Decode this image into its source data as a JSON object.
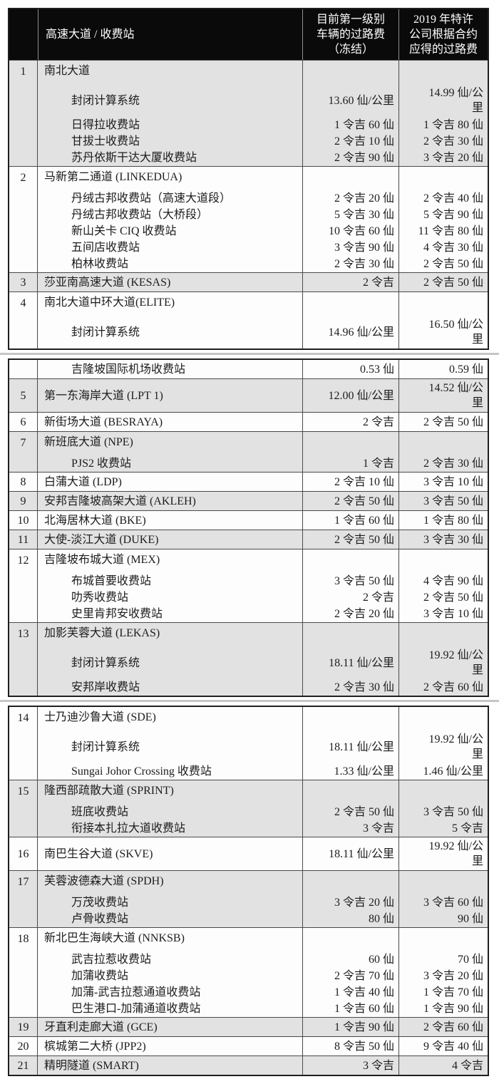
{
  "colors": {
    "header_bg": "#0a0a0a",
    "header_text": "#ffffff",
    "row_shade": "#e2e2e2",
    "row_white": "#fdfdfd",
    "border_dark": "#1f1f1f",
    "border_light": "#4a4a4a",
    "text": "#1c1c1c",
    "break_shadow": "#b3b3b3"
  },
  "table": {
    "header": {
      "col_road": "高速大道 / 收费站",
      "col_current": "目前第一级别\n车辆的过路费\n（冻结）",
      "col_2019": "2019 年特许\n公司根据合约\n应得的过路费"
    },
    "segments": [
      {
        "rows": [
          {
            "num": "1",
            "lines": [
              {
                "type": "title",
                "name": "南北大道",
                "current": "",
                "y2019": ""
              },
              {
                "type": "station",
                "name": "封闭计算系统",
                "current": "13.60 仙/公里",
                "y2019": "14.99 仙/公\n里"
              },
              {
                "type": "station",
                "name": "日得拉收费站",
                "current": "1 令吉 60 仙",
                "y2019": "1 令吉 80 仙"
              },
              {
                "type": "station",
                "name": "甘拔士收费站",
                "current": "2 令吉 10 仙",
                "y2019": "2 令吉 30 仙"
              },
              {
                "type": "station",
                "name": "苏丹依斯干达大厦收费站",
                "current": "2 令吉 90 仙",
                "y2019": "3 令吉 20 仙"
              }
            ]
          },
          {
            "num": "2",
            "lines": [
              {
                "type": "title",
                "name": "马新第二通道 (LINKEDUA)",
                "current": "",
                "y2019": ""
              },
              {
                "type": "station",
                "name": "丹绒古邦收费站（高速大道段）",
                "current": "2 令吉 20 仙",
                "y2019": "2 令吉 40 仙"
              },
              {
                "type": "station",
                "name": "丹绒古邦收费站（大桥段）",
                "current": "5 令吉 30 仙",
                "y2019": "5 令吉 90 仙"
              },
              {
                "type": "station",
                "name": "新山关卡 CIQ 收费站",
                "current": "10 令吉 60 仙",
                "y2019": "11 令吉 80 仙"
              },
              {
                "type": "station",
                "name": "五间店收费站",
                "current": "3 令吉 90 仙",
                "y2019": "4 令吉 30 仙"
              },
              {
                "type": "station",
                "name": "柏林收费站",
                "current": "2 令吉 30 仙",
                "y2019": "2 令吉 50 仙"
              }
            ]
          },
          {
            "num": "3",
            "lines": [
              {
                "type": "title",
                "name": "莎亚南高速大道 (KESAS)",
                "current": "2 令吉",
                "y2019": "2 令吉 50 仙"
              }
            ]
          },
          {
            "num": "4",
            "lines": [
              {
                "type": "title",
                "name": "南北大道中环大道(ELITE)",
                "current": "",
                "y2019": ""
              },
              {
                "type": "station",
                "name": "封闭计算系统",
                "current": "14.96 仙/公里",
                "y2019": "16.50 仙/公\n里"
              }
            ]
          }
        ]
      },
      {
        "rows": [
          {
            "num": "",
            "lines": [
              {
                "type": "station",
                "name": "吉隆坡国际机场收费站",
                "current": "0.53 仙",
                "y2019": "0.59 仙"
              }
            ]
          },
          {
            "num": "5",
            "lines": [
              {
                "type": "title",
                "name": "第一东海岸大道 (LPT 1)",
                "current": "12.00 仙/公里",
                "y2019": "14.52 仙/公\n里"
              }
            ]
          },
          {
            "num": "6",
            "lines": [
              {
                "type": "title",
                "name": "新街场大道 (BESRAYA)",
                "current": "2 令吉",
                "y2019": "2 令吉 50 仙"
              }
            ]
          },
          {
            "num": "7",
            "lines": [
              {
                "type": "title",
                "name": "新班底大道 (NPE)",
                "current": "",
                "y2019": ""
              },
              {
                "type": "station",
                "name": "PJS2 收费站",
                "current": "1 令吉",
                "y2019": "2 令吉 30 仙"
              }
            ]
          },
          {
            "num": "8",
            "lines": [
              {
                "type": "title",
                "name": "白蒲大道 (LDP)",
                "current": "2 令吉 10 仙",
                "y2019": "3 令吉 10 仙"
              }
            ]
          },
          {
            "num": "9",
            "lines": [
              {
                "type": "title",
                "name": "安邦吉隆坡高架大道 (AKLEH)",
                "current": "2 令吉 50 仙",
                "y2019": "3 令吉 50 仙"
              }
            ]
          },
          {
            "num": "10",
            "lines": [
              {
                "type": "title",
                "name": "北海居林大道 (BKE)",
                "current": "1 令吉 60 仙",
                "y2019": "1 令吉 80 仙"
              }
            ]
          },
          {
            "num": "11",
            "lines": [
              {
                "type": "title",
                "name": "大使-淡江大道 (DUKE)",
                "current": "2 令吉 50 仙",
                "y2019": "3 令吉 30 仙"
              }
            ]
          },
          {
            "num": "12",
            "lines": [
              {
                "type": "title",
                "name": "吉隆坡布城大道 (MEX)",
                "current": "",
                "y2019": ""
              },
              {
                "type": "station",
                "name": "布城首要收费站",
                "current": "3 令吉 50 仙",
                "y2019": "4 令吉 90 仙"
              },
              {
                "type": "station",
                "name": "叻秀收费站",
                "current": "2 令吉",
                "y2019": "2 令吉 50 仙"
              },
              {
                "type": "station",
                "name": "史里肯邦安收费站",
                "current": "2 令吉 20 仙",
                "y2019": "3 令吉 10 仙"
              }
            ]
          },
          {
            "num": "13",
            "lines": [
              {
                "type": "title",
                "name": "加影芙蓉大道 (LEKAS)",
                "current": "",
                "y2019": ""
              },
              {
                "type": "station",
                "name": "封闭计算系统",
                "current": "18.11 仙/公里",
                "y2019": "19.92 仙/公\n里"
              },
              {
                "type": "station",
                "name": "安邦岸收费站",
                "current": "2 令吉 30 仙",
                "y2019": "2 令吉 60 仙"
              }
            ]
          }
        ]
      },
      {
        "rows": [
          {
            "num": "14",
            "lines": [
              {
                "type": "title",
                "name": "士乃迪沙鲁大道 (SDE)",
                "current": "",
                "y2019": ""
              },
              {
                "type": "station",
                "name": "封闭计算系统",
                "current": "18.11 仙/公里",
                "y2019": "19.92 仙/公\n里"
              },
              {
                "type": "station",
                "name": "Sungai Johor Crossing 收费站",
                "current": "1.33 仙/公里",
                "y2019": "1.46 仙/公里"
              }
            ]
          },
          {
            "num": "15",
            "lines": [
              {
                "type": "title",
                "name": "隆西部疏散大道 (SPRINT)",
                "current": "",
                "y2019": ""
              },
              {
                "type": "station",
                "name": "班底收费站",
                "current": "2 令吉 50 仙",
                "y2019": "3 令吉 50 仙"
              },
              {
                "type": "station",
                "name": "衔接本扎拉大道收费站",
                "current": "3 令吉",
                "y2019": "5 令吉"
              }
            ]
          },
          {
            "num": "16",
            "lines": [
              {
                "type": "title",
                "name": "南巴生谷大道 (SKVE)",
                "current": "18.11 仙/公里",
                "y2019": "19.92 仙/公\n里"
              }
            ]
          },
          {
            "num": "17",
            "lines": [
              {
                "type": "title",
                "name": "芙蓉波德森大道 (SPDH)",
                "current": "",
                "y2019": ""
              },
              {
                "type": "station",
                "name": "万茂收费站",
                "current": "3 令吉 20 仙",
                "y2019": "3 令吉 60 仙"
              },
              {
                "type": "station",
                "name": "卢骨收费站",
                "current": "80 仙",
                "y2019": "90 仙"
              }
            ]
          },
          {
            "num": "18",
            "lines": [
              {
                "type": "title",
                "name": "新北巴生海峡大道 (NNKSB)",
                "current": "",
                "y2019": ""
              },
              {
                "type": "station",
                "name": "武吉拉惹收费站",
                "current": "60 仙",
                "y2019": "70 仙"
              },
              {
                "type": "station",
                "name": "加蒲收费站",
                "current": "2 令吉 70 仙",
                "y2019": "3 令吉 20 仙"
              },
              {
                "type": "station",
                "name": "加蒲-武吉拉惹通道收费站",
                "current": "1 令吉 40 仙",
                "y2019": "1 令吉 70 仙"
              },
              {
                "type": "station",
                "name": "巴生港口-加蒲通道收费站",
                "current": "1 令吉 60 仙",
                "y2019": "1 令吉 90 仙"
              }
            ]
          },
          {
            "num": "19",
            "lines": [
              {
                "type": "title",
                "name": "牙直利走廊大道 (GCE)",
                "current": "1 令吉 90 仙",
                "y2019": "2 令吉 60 仙"
              }
            ]
          },
          {
            "num": "20",
            "lines": [
              {
                "type": "title",
                "name": "槟城第二大桥 (JPP2)",
                "current": "8 令吉 50 仙",
                "y2019": "9 令吉 40 仙"
              }
            ]
          },
          {
            "num": "21",
            "lines": [
              {
                "type": "title",
                "name": "精明隧道 (SMART)",
                "current": "3 令吉",
                "y2019": "4 令吉"
              }
            ]
          }
        ]
      }
    ]
  }
}
